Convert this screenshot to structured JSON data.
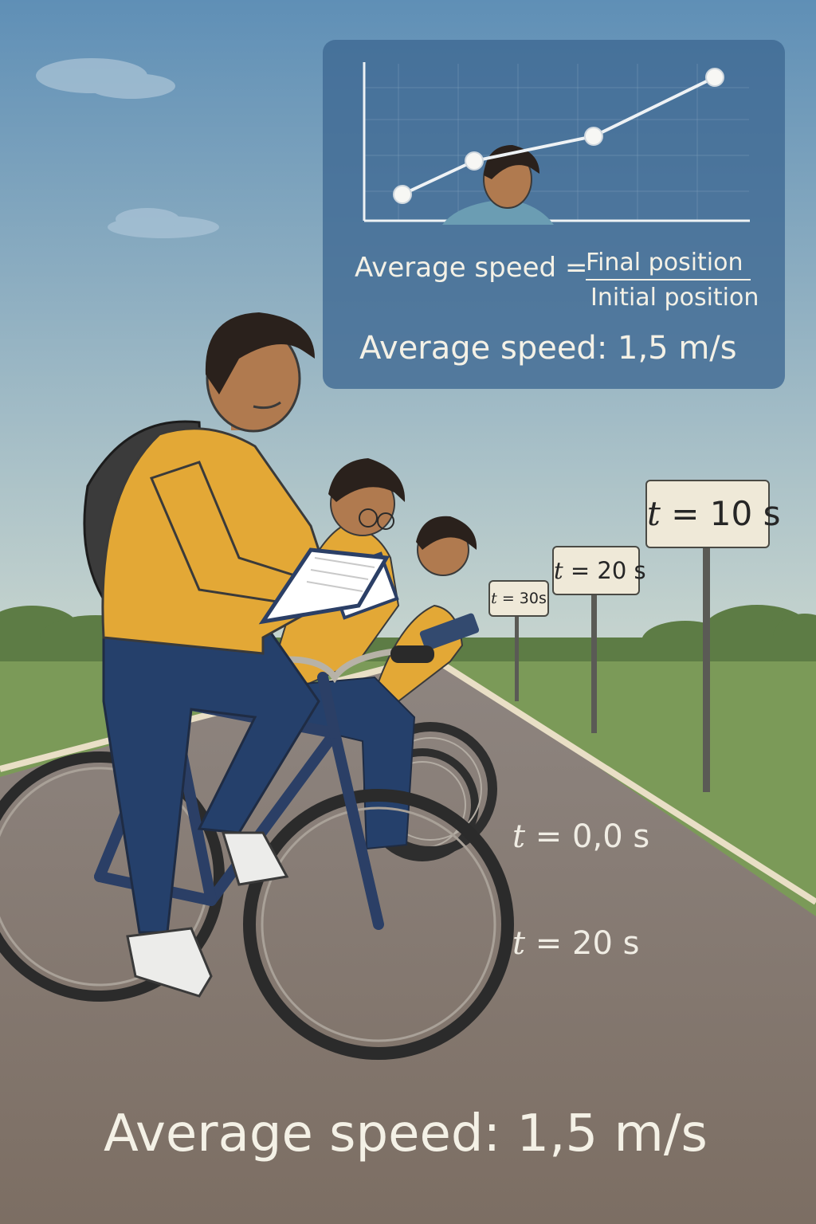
{
  "colors": {
    "sky_top": "#5f8fb6",
    "sky_bottom": "#c9d6cf",
    "grass": "#7b9a58",
    "road": "#807368",
    "shirt": "#e3a836",
    "jeans": "#25406b",
    "bike_frame": "#2b3f66",
    "panel": "#3e6892",
    "text_light": "#f4f1e6",
    "sign_face": "#efe9d8"
  },
  "panel": {
    "formula_lhs": "Average speed =",
    "formula_numerator": "Final position",
    "formula_denominator": "Initial position",
    "result": "Average speed:  1,5 m/s"
  },
  "signs": [
    {
      "var": "t",
      "eq": "= 10 s"
    },
    {
      "var": "t",
      "eq": "= 20 s"
    },
    {
      "var": "t",
      "eq": "= 30s"
    }
  ],
  "road_labels": [
    {
      "var": "t",
      "eq": " = 0,0 s"
    },
    {
      "var": "t",
      "eq": " = 20 s"
    }
  ],
  "bottom_result": "Average speed:  1,5 m/s"
}
